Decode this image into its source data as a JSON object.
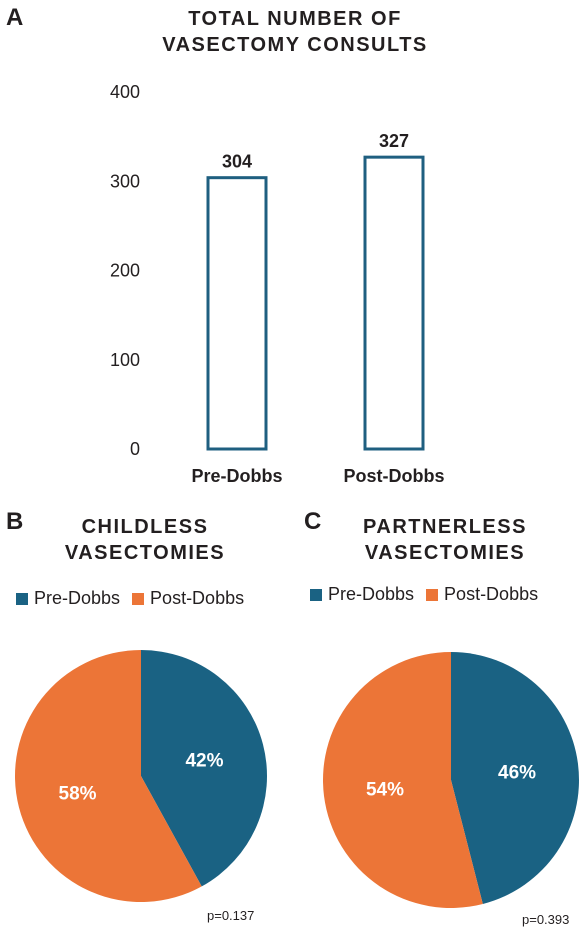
{
  "panel_a": {
    "letter": "A",
    "title_lines": [
      "TOTAL NUMBER OF",
      "VASECTOMY CONSULTS"
    ]
  },
  "panel_b": {
    "letter": "B",
    "title_lines": [
      "CHILDLESS",
      "VASECTOMIES"
    ],
    "pvalue": "p=0.137"
  },
  "panel_c": {
    "letter": "C",
    "title_lines": [
      "PARTNERLESS",
      "VASECTOMIES"
    ],
    "pvalue": "p=0.393"
  },
  "colors": {
    "pre": "#1a6283",
    "post": "#ec7537",
    "bar_edge": "#1f5f80"
  },
  "chart_data": [
    {
      "type": "bar",
      "title": "TOTAL NUMBER OF VASECTOMY CONSULTS",
      "categories": [
        "Pre-Dobbs",
        "Post-Dobbs"
      ],
      "values": [
        304,
        327
      ],
      "data_labels": [
        "304",
        "327"
      ],
      "ylim": [
        0,
        400
      ],
      "yticks": [
        0,
        100,
        200,
        300,
        400
      ],
      "xlabel": "",
      "ylabel": "",
      "grid": false
    },
    {
      "type": "pie",
      "title": "CHILDLESS VASECTOMIES",
      "labels": [
        "Pre-Dobbs",
        "Post-Dobbs"
      ],
      "values": [
        42,
        58
      ],
      "slice_labels": [
        "42%",
        "58%"
      ],
      "legend": "top"
    },
    {
      "type": "pie",
      "title": "PARTNERLESS VASECTOMIES",
      "labels": [
        "Pre-Dobbs",
        "Post-Dobbs"
      ],
      "values": [
        46,
        54
      ],
      "slice_labels": [
        "46%",
        "54%"
      ],
      "legend": "top"
    }
  ]
}
